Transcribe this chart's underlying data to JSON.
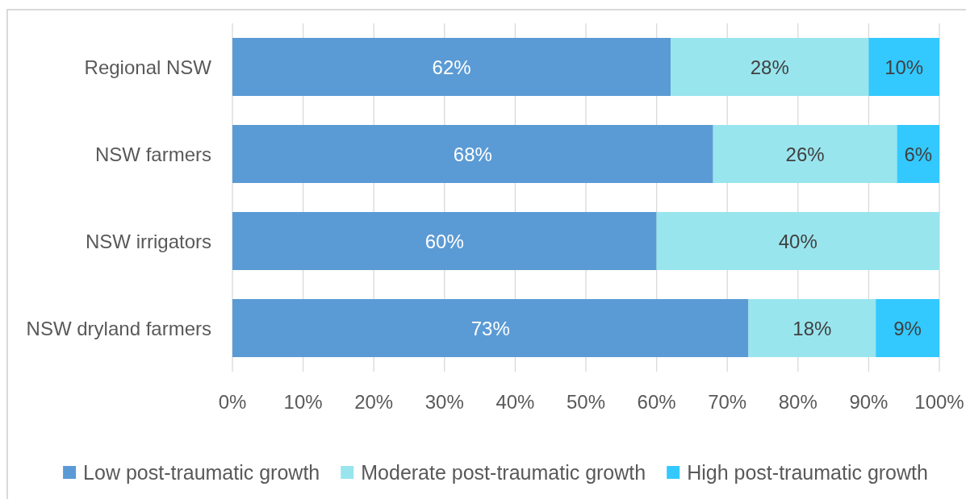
{
  "chart_data": {
    "type": "bar",
    "orientation": "horizontal",
    "stacked": true,
    "categories": [
      "Regional NSW",
      "NSW farmers",
      "NSW irrigators",
      "NSW dryland farmers"
    ],
    "series": [
      {
        "name": "Low post-traumatic growth",
        "color": "#5b9bd5",
        "values": [
          62,
          68,
          60,
          73
        ],
        "value_labels": [
          "62%",
          "68%",
          "60%",
          "73%"
        ]
      },
      {
        "name": "Moderate post-traumatic growth",
        "color": "#99e5ee",
        "values": [
          28,
          26,
          40,
          18
        ],
        "value_labels": [
          "28%",
          "26%",
          "40%",
          "18%"
        ]
      },
      {
        "name": "High post-traumatic growth",
        "color": "#33c9ff",
        "values": [
          10,
          6,
          null,
          9
        ],
        "value_labels": [
          "10%",
          "6%",
          null,
          "9%"
        ]
      }
    ],
    "xlim": [
      0,
      100
    ],
    "xticks": [
      {
        "value": 0,
        "label": "0%"
      },
      {
        "value": 10,
        "label": "10%"
      },
      {
        "value": 20,
        "label": "20%"
      },
      {
        "value": 30,
        "label": "30%"
      },
      {
        "value": 40,
        "label": "40%"
      },
      {
        "value": 50,
        "label": "50%"
      },
      {
        "value": 60,
        "label": "60%"
      },
      {
        "value": 70,
        "label": "70%"
      },
      {
        "value": 80,
        "label": "80%"
      },
      {
        "value": 90,
        "label": "90%"
      },
      {
        "value": 100,
        "label": "100%"
      }
    ],
    "grid": "x",
    "legend": "bottom"
  }
}
